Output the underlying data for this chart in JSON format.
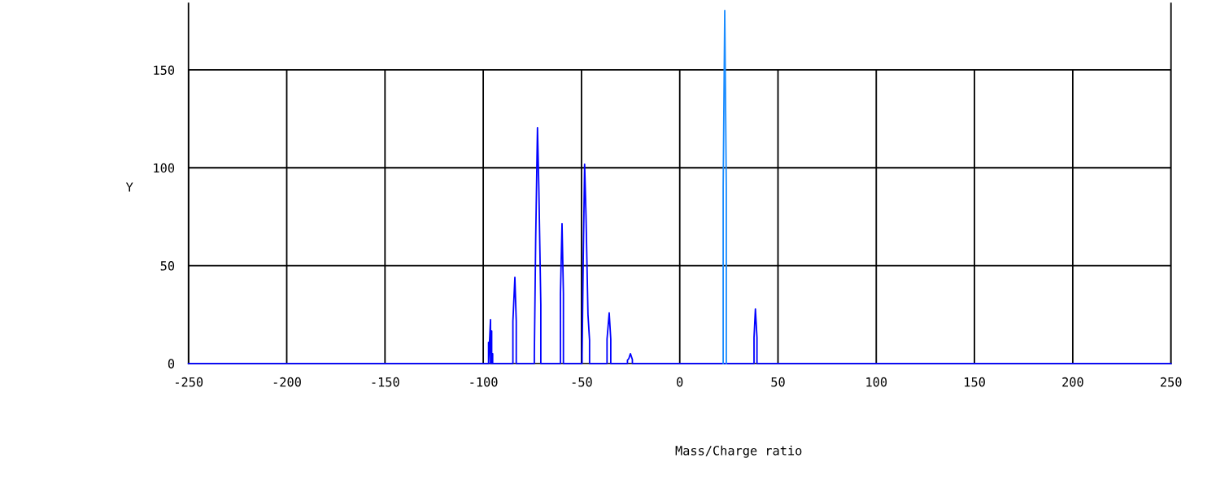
{
  "chart_data": {
    "type": "line",
    "xlabel": "Mass/Charge ratio",
    "ylabel": "Y",
    "xlim": [
      -250,
      250
    ],
    "xticks": [
      -250,
      -200,
      -150,
      -100,
      -50,
      0,
      50,
      100,
      150,
      200,
      250
    ],
    "ylim": [
      0,
      184
    ],
    "yticks": [
      0,
      50,
      100,
      150
    ],
    "grid": true,
    "legend": false,
    "marker": "none",
    "line_style": "solid",
    "series": [
      {
        "color": "#0000ff",
        "x": [
          -250,
          -97.3,
          -97.3,
          -97.3,
          -96.3,
          -96.3,
          -95.7,
          -95.7,
          -95.2,
          -95.2,
          -84.9,
          -84.9,
          -83.9,
          -83.9,
          -83.2,
          -83.2,
          -74.0,
          -74.0,
          -73.3,
          -73.3,
          -72.4,
          -72.4,
          -71.7,
          -71.7,
          -70.7,
          -70.7,
          -60.7,
          -60.7,
          -59.9,
          -59.9,
          -59.2,
          -59.2,
          -49.7,
          -49.7,
          -49.1,
          -49.1,
          -48.4,
          -48.4,
          -47.7,
          -47.7,
          -46.7,
          -46.7,
          -45.9,
          -45.9,
          -37.0,
          -37.0,
          -35.9,
          -35.9,
          -35.1,
          -35.1,
          -26.6,
          -26.6,
          -25.9,
          -25.9,
          -25.1,
          -25.1,
          -24.1,
          -24.1,
          37.8,
          37.8,
          38.5,
          38.5,
          39.3,
          39.3,
          250
        ],
        "values": [
          0,
          0,
          10.8,
          0,
          22.4,
          0,
          16.6,
          0,
          5,
          0,
          0,
          21.6,
          44,
          44,
          21.6,
          0,
          0,
          3.7,
          64,
          64,
          120.5,
          120.5,
          89.7,
          89.7,
          30,
          0,
          0,
          35.7,
          71.5,
          71.5,
          35.7,
          0,
          0,
          4,
          54,
          54,
          101.8,
          101.8,
          75.6,
          75.6,
          25,
          25,
          12,
          0,
          0,
          12.5,
          25.8,
          25.8,
          12.5,
          0,
          0,
          1.7,
          2.5,
          2.5,
          5,
          5,
          2,
          0,
          0,
          13.3,
          27.8,
          27.8,
          13.3,
          0,
          0
        ]
      },
      {
        "color": "#1a8cff",
        "x": [
          22.1,
          22.1,
          22.9,
          22.9,
          23.7,
          23.7
        ],
        "values": [
          0,
          90,
          180.4,
          180.4,
          90,
          0
        ]
      }
    ]
  }
}
